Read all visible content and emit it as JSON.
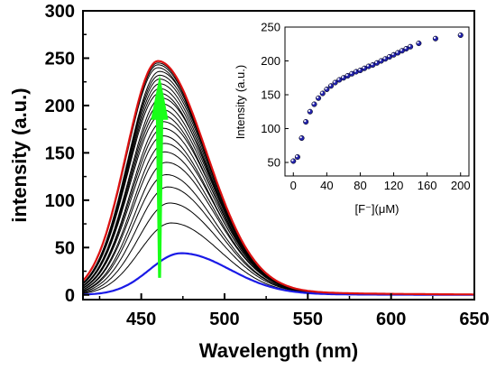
{
  "colors": {
    "background": "#ffffff",
    "black_curves": "#000000",
    "red_curve": "#dd1111",
    "blue_curve": "#1a1ae6",
    "arrow": "#19ff19",
    "inset_marker_fill": "#2222aa"
  },
  "chart_data": [
    {
      "type": "line",
      "xlabel": "Wavelength (nm)",
      "ylabel": "intensity (a.u.)",
      "xlim": [
        415,
        650
      ],
      "ylim": [
        -5,
        300
      ],
      "x_ticks": [
        450,
        500,
        550,
        600,
        650
      ],
      "y_ticks": [
        0,
        50,
        100,
        150,
        200,
        250,
        300
      ],
      "grid": false,
      "annotation": "green upward arrow indicating increasing intensity",
      "series_peaks": [
        {
          "color": "blue",
          "peak_x": 474,
          "peak_y": 44
        },
        {
          "color": "black",
          "peak_x": 468,
          "peak_y": 76
        },
        {
          "color": "black",
          "peak_x": 467,
          "peak_y": 97
        },
        {
          "color": "black",
          "peak_x": 466,
          "peak_y": 114
        },
        {
          "color": "black",
          "peak_x": 465,
          "peak_y": 127
        },
        {
          "color": "black",
          "peak_x": 465,
          "peak_y": 140
        },
        {
          "color": "black",
          "peak_x": 464,
          "peak_y": 151
        },
        {
          "color": "black",
          "peak_x": 464,
          "peak_y": 160
        },
        {
          "color": "black",
          "peak_x": 463,
          "peak_y": 168
        },
        {
          "color": "black",
          "peak_x": 463,
          "peak_y": 176
        },
        {
          "color": "black",
          "peak_x": 463,
          "peak_y": 183
        },
        {
          "color": "black",
          "peak_x": 462,
          "peak_y": 190
        },
        {
          "color": "black",
          "peak_x": 462,
          "peak_y": 196
        },
        {
          "color": "black",
          "peak_x": 462,
          "peak_y": 202
        },
        {
          "color": "black",
          "peak_x": 462,
          "peak_y": 208
        },
        {
          "color": "black",
          "peak_x": 461,
          "peak_y": 213
        },
        {
          "color": "black",
          "peak_x": 461,
          "peak_y": 218
        },
        {
          "color": "black",
          "peak_x": 461,
          "peak_y": 223
        },
        {
          "color": "black",
          "peak_x": 461,
          "peak_y": 228
        },
        {
          "color": "black",
          "peak_x": 461,
          "peak_y": 232
        },
        {
          "color": "black",
          "peak_x": 461,
          "peak_y": 236
        },
        {
          "color": "black",
          "peak_x": 460,
          "peak_y": 240
        },
        {
          "color": "black",
          "peak_x": 460,
          "peak_y": 243
        },
        {
          "color": "black",
          "peak_x": 460,
          "peak_y": 245
        },
        {
          "color": "red",
          "peak_x": 460,
          "peak_y": 247
        }
      ]
    },
    {
      "type": "scatter",
      "xlabel": "[F⁻](μM)",
      "ylabel": "Intensity (a.u.)",
      "xlim": [
        -10,
        210
      ],
      "ylim": [
        30,
        250
      ],
      "x_ticks": [
        0,
        40,
        80,
        120,
        160,
        200
      ],
      "y_ticks": [
        50,
        100,
        150,
        200,
        250
      ],
      "x": [
        0,
        5,
        10,
        15,
        20,
        25,
        30,
        35,
        40,
        45,
        50,
        55,
        60,
        65,
        70,
        75,
        80,
        85,
        90,
        95,
        100,
        105,
        110,
        115,
        120,
        125,
        130,
        135,
        140,
        150,
        170,
        200
      ],
      "y": [
        52,
        58,
        86,
        110,
        125,
        136,
        145,
        152,
        158,
        163,
        168,
        172,
        175,
        178,
        181,
        184,
        186,
        189,
        192,
        194,
        197,
        200,
        203,
        206,
        209,
        212,
        215,
        218,
        221,
        226,
        233,
        238
      ]
    }
  ]
}
